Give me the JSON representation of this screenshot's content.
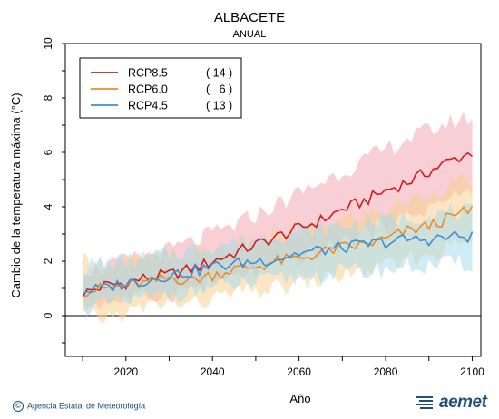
{
  "chart_data": {
    "type": "line",
    "title": "ALBACETE",
    "subtitle": "ANUAL",
    "xlabel": "Año",
    "ylabel": "Cambio  de la temperatura máxima (°C)",
    "xlim": [
      2006,
      2102
    ],
    "ylim": [
      -1.5,
      10
    ],
    "xticks": [
      2020,
      2040,
      2060,
      2080,
      2100
    ],
    "yticks": [
      0,
      2,
      4,
      6,
      8,
      10
    ],
    "zero_line": true,
    "legend_position": "top-left",
    "series": [
      {
        "name": "RCP8.5",
        "count": "( 14 )",
        "color": "#cc1f1f",
        "band_color": "#f4a7b4",
        "years": [
          2010,
          2015,
          2020,
          2025,
          2030,
          2035,
          2040,
          2045,
          2050,
          2055,
          2060,
          2065,
          2070,
          2075,
          2080,
          2085,
          2090,
          2095,
          2100
        ],
        "values": [
          0.8,
          1.1,
          1.2,
          1.4,
          1.5,
          1.7,
          2.0,
          2.3,
          2.6,
          2.9,
          3.2,
          3.5,
          3.9,
          4.2,
          4.6,
          4.9,
          5.3,
          5.7,
          6.0
        ],
        "lower": [
          0.4,
          0.5,
          0.6,
          0.7,
          0.8,
          1.0,
          1.2,
          1.4,
          1.6,
          1.8,
          2.1,
          2.3,
          2.7,
          3.0,
          3.3,
          3.6,
          4.0,
          4.3,
          4.6
        ],
        "upper": [
          1.7,
          1.8,
          2.0,
          2.2,
          2.4,
          2.7,
          3.0,
          3.3,
          3.7,
          4.1,
          4.5,
          4.9,
          5.3,
          5.7,
          6.1,
          6.5,
          6.8,
          7.1,
          7.3
        ]
      },
      {
        "name": "RCP6.0",
        "count": "(   6 )",
        "color": "#f08a24",
        "band_color": "#f7cf90",
        "years": [
          2010,
          2015,
          2020,
          2025,
          2030,
          2035,
          2040,
          2045,
          2050,
          2055,
          2060,
          2065,
          2070,
          2075,
          2080,
          2085,
          2090,
          2095,
          2100
        ],
        "values": [
          0.9,
          1.0,
          1.1,
          1.2,
          1.4,
          1.3,
          1.5,
          1.7,
          1.8,
          2.0,
          2.1,
          2.3,
          2.5,
          2.6,
          2.8,
          3.1,
          3.3,
          3.6,
          3.9
        ],
        "lower": [
          0.0,
          -0.1,
          0.1,
          0.3,
          0.5,
          0.4,
          0.6,
          0.8,
          0.9,
          1.0,
          1.2,
          1.3,
          1.5,
          1.6,
          1.8,
          2.0,
          2.2,
          2.5,
          2.8
        ],
        "upper": [
          2.0,
          2.0,
          2.0,
          2.1,
          2.2,
          2.2,
          2.4,
          2.6,
          2.7,
          2.9,
          3.0,
          3.3,
          3.5,
          3.7,
          3.9,
          4.2,
          4.5,
          4.8,
          5.0
        ]
      },
      {
        "name": "RCP4.5",
        "count": "( 13 )",
        "color": "#3a8fd8",
        "band_color": "#a8dcec",
        "years": [
          2010,
          2015,
          2020,
          2025,
          2030,
          2035,
          2040,
          2045,
          2050,
          2055,
          2060,
          2065,
          2070,
          2075,
          2080,
          2085,
          2090,
          2095,
          2100
        ],
        "values": [
          0.9,
          1.0,
          1.2,
          1.3,
          1.5,
          1.6,
          1.8,
          1.9,
          2.0,
          2.1,
          2.3,
          2.4,
          2.5,
          2.6,
          2.7,
          2.8,
          2.8,
          2.9,
          2.9
        ],
        "lower": [
          0.3,
          0.4,
          0.5,
          0.6,
          0.8,
          0.9,
          1.0,
          1.1,
          1.2,
          1.3,
          1.4,
          1.5,
          1.6,
          1.6,
          1.7,
          1.8,
          1.8,
          1.9,
          1.9
        ],
        "upper": [
          1.8,
          1.9,
          2.0,
          2.1,
          2.3,
          2.4,
          2.6,
          2.7,
          2.8,
          3.0,
          3.1,
          3.2,
          3.3,
          3.4,
          3.5,
          3.6,
          3.7,
          3.8,
          3.8
        ]
      }
    ]
  },
  "footer": {
    "credit": "Agencia Estatal de Meteorología",
    "logo_text": "aemet"
  }
}
